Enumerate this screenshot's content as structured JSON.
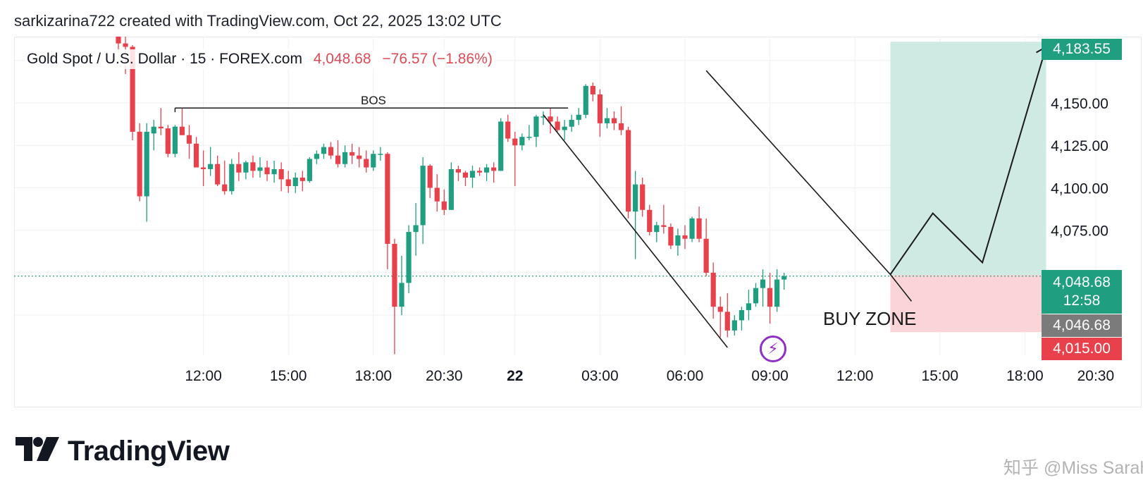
{
  "header": {
    "caption": "sarkizarina722 created with TradingView.com, Oct 22, 2025 13:02 UTC"
  },
  "legend": {
    "symbol": "Gold Spot / U.S. Dollar · 15 · FOREX.com",
    "last": "4,048.68",
    "change": "−76.57 (−1.86%)"
  },
  "colors": {
    "up": "#1f9e80",
    "down": "#e8414b",
    "target_zone": "#cfeae3",
    "buy_zone": "#fbd4d7",
    "grid": "#eef0f3",
    "price_line": "#1f9e80",
    "alert": "#8e2fc6"
  },
  "annotations": {
    "bos": "BOS",
    "buy_zone": "BUY ZONE"
  },
  "icons": {
    "alert": "lightning-bolt-icon",
    "logo": "tradingview-logo-icon"
  },
  "price_tags": {
    "top": "4,183.55",
    "last": "4,048.68",
    "countdown": "12:58",
    "prev": "4,046.68",
    "low": "4,015.00"
  },
  "brand": {
    "name": "TradingView"
  },
  "watermark": "知乎 @Miss Sarah",
  "chart_data": {
    "type": "candlestick",
    "symbol": "Gold Spot / U.S. Dollar",
    "interval": "15",
    "ylim": [
      4001,
      4189
    ],
    "yticks": [
      4150,
      4125,
      4100,
      4075
    ],
    "ytick_labels": [
      "4,150.00",
      "4,125.00",
      "4,100.00",
      "4,075.00"
    ],
    "xticks": [
      {
        "label": "12:00",
        "slot": -24
      },
      {
        "label": "15:00",
        "slot": -12
      },
      {
        "label": "18:00",
        "slot": 0
      },
      {
        "label": "20:30",
        "slot": 10
      },
      {
        "label": "22",
        "slot": 20,
        "bold": true
      },
      {
        "label": "03:00",
        "slot": 32
      },
      {
        "label": "06:00",
        "slot": 44
      },
      {
        "label": "09:00",
        "slot": 56
      },
      {
        "label": "12:00",
        "slot": 68
      },
      {
        "label": "15:00",
        "slot": 80
      },
      {
        "label": "18:00",
        "slot": 92
      },
      {
        "label": "20:30",
        "slot": 102
      }
    ],
    "candles": [
      {
        "o": 4195,
        "h": 4200,
        "l": 4180,
        "c": 4185
      },
      {
        "o": 4185,
        "h": 4190,
        "l": 4167,
        "c": 4183
      },
      {
        "o": 4183,
        "h": 4184,
        "l": 4128,
        "c": 4133
      },
      {
        "o": 4133,
        "h": 4138,
        "l": 4092,
        "c": 4095
      },
      {
        "o": 4095,
        "h": 4138,
        "l": 4080,
        "c": 4133
      },
      {
        "o": 4132,
        "h": 4140,
        "l": 4122,
        "c": 4136
      },
      {
        "o": 4136,
        "h": 4147,
        "l": 4131,
        "c": 4135
      },
      {
        "o": 4135,
        "h": 4137,
        "l": 4118,
        "c": 4120
      },
      {
        "o": 4120,
        "h": 4137,
        "l": 4118,
        "c": 4136
      },
      {
        "o": 4136,
        "h": 4147,
        "l": 4131,
        "c": 4131
      },
      {
        "o": 4131,
        "h": 4137,
        "l": 4117,
        "c": 4126
      },
      {
        "o": 4126,
        "h": 4130,
        "l": 4112,
        "c": 4112
      },
      {
        "o": 4112,
        "h": 4122,
        "l": 4101,
        "c": 4111
      },
      {
        "o": 4111,
        "h": 4124,
        "l": 4107,
        "c": 4114
      },
      {
        "o": 4114,
        "h": 4119,
        "l": 4101,
        "c": 4102
      },
      {
        "o": 4102,
        "h": 4116,
        "l": 4096,
        "c": 4098
      },
      {
        "o": 4098,
        "h": 4117,
        "l": 4096,
        "c": 4114
      },
      {
        "o": 4114,
        "h": 4121,
        "l": 4104,
        "c": 4109
      },
      {
        "o": 4109,
        "h": 4116,
        "l": 4105,
        "c": 4115
      },
      {
        "o": 4115,
        "h": 4119,
        "l": 4106,
        "c": 4110
      },
      {
        "o": 4110,
        "h": 4118,
        "l": 4106,
        "c": 4112
      },
      {
        "o": 4112,
        "h": 4116,
        "l": 4104,
        "c": 4108
      },
      {
        "o": 4108,
        "h": 4116,
        "l": 4103,
        "c": 4111
      },
      {
        "o": 4111,
        "h": 4115,
        "l": 4098,
        "c": 4105
      },
      {
        "o": 4105,
        "h": 4110,
        "l": 4097,
        "c": 4101
      },
      {
        "o": 4101,
        "h": 4109,
        "l": 4097,
        "c": 4106
      },
      {
        "o": 4106,
        "h": 4110,
        "l": 4098,
        "c": 4104
      },
      {
        "o": 4104,
        "h": 4118,
        "l": 4103,
        "c": 4117
      },
      {
        "o": 4117,
        "h": 4122,
        "l": 4114,
        "c": 4120
      },
      {
        "o": 4120,
        "h": 4126,
        "l": 4117,
        "c": 4124
      },
      {
        "o": 4124,
        "h": 4127,
        "l": 4117,
        "c": 4119
      },
      {
        "o": 4119,
        "h": 4128,
        "l": 4112,
        "c": 4114
      },
      {
        "o": 4114,
        "h": 4125,
        "l": 4112,
        "c": 4121
      },
      {
        "o": 4121,
        "h": 4126,
        "l": 4114,
        "c": 4119
      },
      {
        "o": 4119,
        "h": 4124,
        "l": 4112,
        "c": 4117
      },
      {
        "o": 4117,
        "h": 4122,
        "l": 4109,
        "c": 4112
      },
      {
        "o": 4112,
        "h": 4122,
        "l": 4110,
        "c": 4120
      },
      {
        "o": 4120,
        "h": 4124,
        "l": 4116,
        "c": 4120
      },
      {
        "o": 4120,
        "h": 4121,
        "l": 4052,
        "c": 4067
      },
      {
        "o": 4067,
        "h": 4070,
        "l": 4002,
        "c": 4030
      },
      {
        "o": 4030,
        "h": 4060,
        "l": 4025,
        "c": 4044
      },
      {
        "o": 4044,
        "h": 4078,
        "l": 4038,
        "c": 4074
      },
      {
        "o": 4074,
        "h": 4091,
        "l": 4060,
        "c": 4078
      },
      {
        "o": 4078,
        "h": 4118,
        "l": 4067,
        "c": 4113
      },
      {
        "o": 4113,
        "h": 4114,
        "l": 4094,
        "c": 4100
      },
      {
        "o": 4100,
        "h": 4108,
        "l": 4086,
        "c": 4092
      },
      {
        "o": 4092,
        "h": 4099,
        "l": 4084,
        "c": 4087
      },
      {
        "o": 4087,
        "h": 4115,
        "l": 4087,
        "c": 4111
      },
      {
        "o": 4111,
        "h": 4113,
        "l": 4104,
        "c": 4109
      },
      {
        "o": 4109,
        "h": 4110,
        "l": 4101,
        "c": 4106
      },
      {
        "o": 4106,
        "h": 4113,
        "l": 4100,
        "c": 4110
      },
      {
        "o": 4110,
        "h": 4112,
        "l": 4107,
        "c": 4109
      },
      {
        "o": 4109,
        "h": 4114,
        "l": 4104,
        "c": 4112
      },
      {
        "o": 4112,
        "h": 4115,
        "l": 4103,
        "c": 4110
      },
      {
        "o": 4110,
        "h": 4141,
        "l": 4110,
        "c": 4139
      },
      {
        "o": 4139,
        "h": 4143,
        "l": 4127,
        "c": 4129
      },
      {
        "o": 4129,
        "h": 4133,
        "l": 4101,
        "c": 4125
      },
      {
        "o": 4125,
        "h": 4132,
        "l": 4122,
        "c": 4130
      },
      {
        "o": 4130,
        "h": 4137,
        "l": 4128,
        "c": 4130
      },
      {
        "o": 4130,
        "h": 4143,
        "l": 4124,
        "c": 4142
      },
      {
        "o": 4142,
        "h": 4145,
        "l": 4137,
        "c": 4142
      },
      {
        "o": 4142,
        "h": 4147,
        "l": 4132,
        "c": 4139
      },
      {
        "o": 4139,
        "h": 4142,
        "l": 4133,
        "c": 4134
      },
      {
        "o": 4134,
        "h": 4140,
        "l": 4128,
        "c": 4136
      },
      {
        "o": 4136,
        "h": 4143,
        "l": 4133,
        "c": 4140
      },
      {
        "o": 4140,
        "h": 4147,
        "l": 4137,
        "c": 4143
      },
      {
        "o": 4143,
        "h": 4161,
        "l": 4141,
        "c": 4160
      },
      {
        "o": 4160,
        "h": 4162,
        "l": 4151,
        "c": 4155
      },
      {
        "o": 4155,
        "h": 4158,
        "l": 4130,
        "c": 4138
      },
      {
        "o": 4138,
        "h": 4147,
        "l": 4135,
        "c": 4141
      },
      {
        "o": 4141,
        "h": 4145,
        "l": 4134,
        "c": 4138
      },
      {
        "o": 4138,
        "h": 4148,
        "l": 4131,
        "c": 4134
      },
      {
        "o": 4134,
        "h": 4136,
        "l": 4082,
        "c": 4086
      },
      {
        "o": 4086,
        "h": 4110,
        "l": 4058,
        "c": 4102
      },
      {
        "o": 4102,
        "h": 4106,
        "l": 4083,
        "c": 4087
      },
      {
        "o": 4087,
        "h": 4090,
        "l": 4072,
        "c": 4074
      },
      {
        "o": 4074,
        "h": 4080,
        "l": 4068,
        "c": 4078
      },
      {
        "o": 4078,
        "h": 4090,
        "l": 4073,
        "c": 4077
      },
      {
        "o": 4077,
        "h": 4079,
        "l": 4064,
        "c": 4066
      },
      {
        "o": 4066,
        "h": 4076,
        "l": 4060,
        "c": 4072
      },
      {
        "o": 4072,
        "h": 4078,
        "l": 4064,
        "c": 4070
      },
      {
        "o": 4070,
        "h": 4083,
        "l": 4068,
        "c": 4082
      },
      {
        "o": 4082,
        "h": 4089,
        "l": 4068,
        "c": 4070
      },
      {
        "o": 4070,
        "h": 4082,
        "l": 4048,
        "c": 4050
      },
      {
        "o": 4050,
        "h": 4056,
        "l": 4023,
        "c": 4030
      },
      {
        "o": 4030,
        "h": 4036,
        "l": 4012,
        "c": 4027
      },
      {
        "o": 4027,
        "h": 4038,
        "l": 4012,
        "c": 4016
      },
      {
        "o": 4016,
        "h": 4025,
        "l": 4013,
        "c": 4022
      },
      {
        "o": 4022,
        "h": 4030,
        "l": 4016,
        "c": 4028
      },
      {
        "o": 4028,
        "h": 4040,
        "l": 4022,
        "c": 4032
      },
      {
        "o": 4032,
        "h": 4044,
        "l": 4030,
        "c": 4041
      },
      {
        "o": 4041,
        "h": 4052,
        "l": 4030,
        "c": 4046
      },
      {
        "o": 4041,
        "h": 4050,
        "l": 4020,
        "c": 4030
      },
      {
        "o": 4030,
        "h": 4052,
        "l": 4027,
        "c": 4046
      },
      {
        "o": 4046,
        "h": 4050,
        "l": 4040,
        "c": 4048
      }
    ],
    "drawings": {
      "bos_level": 4147,
      "channel_upper": [
        {
          "slot": 47,
          "price": 4169
        },
        {
          "slot": 73,
          "price": 4049
        }
      ],
      "channel_lower": [
        {
          "slot": 24,
          "price": 4143
        },
        {
          "slot": 50,
          "price": 4006
        }
      ],
      "projection": [
        {
          "slot": 73,
          "price": 4049
        },
        {
          "slot": 79,
          "price": 4085
        },
        {
          "slot": 86,
          "price": 4056
        },
        {
          "slot": 95,
          "price": 4183
        }
      ],
      "target_zone": {
        "from_slot": 73,
        "to_slot": 95,
        "top": 4186,
        "bottom": 4048.68
      },
      "buy_zone": {
        "from_slot": 73,
        "to_slot": 95,
        "top": 4048.68,
        "bottom": 4015
      }
    }
  }
}
